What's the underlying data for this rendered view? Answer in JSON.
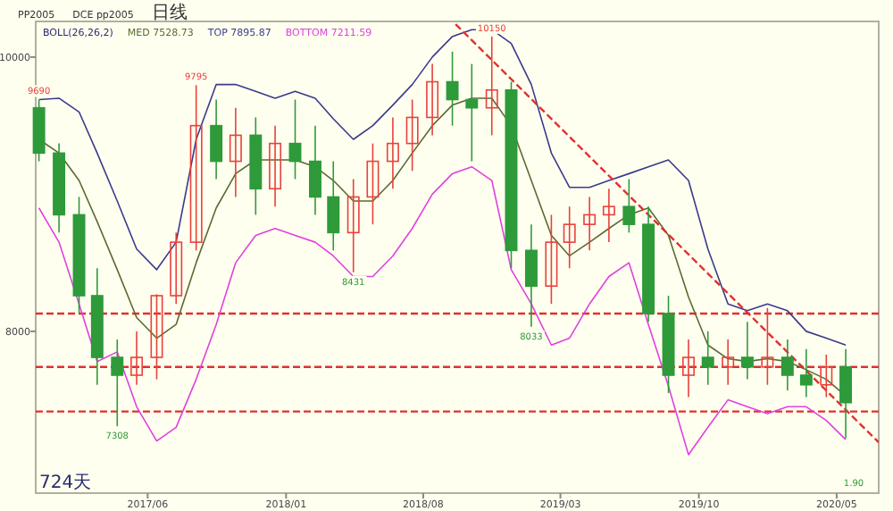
{
  "chart_data": {
    "type": "candlestick",
    "legend_title": "BOLL(26,26,2)",
    "legend": "top left",
    "x": [
      "2016-12-15",
      "2017-01-15",
      "2017-02-15",
      "2017-03-15",
      "2017-04-15",
      "2017-05-15",
      "2017-06-15",
      "2017-07-15",
      "2017-08-15",
      "2017-09-15",
      "2017-10-15",
      "2017-11-15",
      "2017-12-15",
      "2018-01-15",
      "2018-02-15",
      "2018-03-15",
      "2018-04-15",
      "2018-05-15",
      "2018-06-15",
      "2018-07-15",
      "2018-08-15",
      "2018-09-15",
      "2018-10-15",
      "2018-11-15",
      "2018-12-15",
      "2019-01-15",
      "2019-02-15",
      "2019-03-15",
      "2019-04-15",
      "2019-05-15",
      "2019-06-15",
      "2019-07-15",
      "2019-08-15",
      "2019-09-15",
      "2019-10-15",
      "2019-11-15",
      "2019-12-15",
      "2020-01-15",
      "2020-02-15",
      "2020-03-15",
      "2020-04-15",
      "2020-05-15"
    ],
    "ohlc": [
      [
        9630,
        9690,
        9240,
        9300
      ],
      [
        9300,
        9370,
        8720,
        8850
      ],
      [
        8850,
        8980,
        8130,
        8260
      ],
      [
        8260,
        8460,
        7610,
        7810
      ],
      [
        7810,
        7940,
        7308,
        7680
      ],
      [
        7680,
        8000,
        7610,
        7810
      ],
      [
        7810,
        8270,
        7650,
        8260
      ],
      [
        8260,
        8720,
        8200,
        8650
      ],
      [
        8650,
        9795,
        8590,
        9500
      ],
      [
        9500,
        9690,
        9110,
        9240
      ],
      [
        9240,
        9630,
        8980,
        9430
      ],
      [
        9430,
        9560,
        8850,
        9040
      ],
      [
        9040,
        9500,
        8910,
        9370
      ],
      [
        9370,
        9690,
        9110,
        9240
      ],
      [
        9240,
        9500,
        8850,
        8980
      ],
      [
        8980,
        9240,
        8590,
        8720
      ],
      [
        8720,
        9110,
        8431,
        8980
      ],
      [
        8980,
        9370,
        8780,
        9240
      ],
      [
        9240,
        9560,
        9040,
        9370
      ],
      [
        9370,
        9690,
        9170,
        9560
      ],
      [
        9560,
        9950,
        9430,
        9820
      ],
      [
        9820,
        10040,
        9500,
        9690
      ],
      [
        9690,
        9950,
        9240,
        9630
      ],
      [
        9630,
        10150,
        9430,
        9760
      ],
      [
        9760,
        9820,
        8460,
        8590
      ],
      [
        8590,
        8780,
        8033,
        8330
      ],
      [
        8330,
        8850,
        8200,
        8650
      ],
      [
        8650,
        8910,
        8460,
        8780
      ],
      [
        8780,
        8980,
        8590,
        8850
      ],
      [
        8850,
        9040,
        8650,
        8910
      ],
      [
        8910,
        9110,
        8720,
        8780
      ],
      [
        8780,
        8910,
        8070,
        8130
      ],
      [
        8130,
        8260,
        7550,
        7680
      ],
      [
        7680,
        7940,
        7520,
        7810
      ],
      [
        7810,
        8000,
        7610,
        7740
      ],
      [
        7740,
        7940,
        7610,
        7810
      ],
      [
        7810,
        8070,
        7650,
        7740
      ],
      [
        7740,
        8170,
        7610,
        7810
      ],
      [
        7810,
        7940,
        7570,
        7680
      ],
      [
        7680,
        7870,
        7520,
        7610
      ],
      [
        7610,
        7830,
        7520,
        7740
      ],
      [
        7740,
        7870,
        7220,
        7480
      ]
    ],
    "colors": [
      "#2e9a3a",
      "#2e9a3a",
      "#2e9a3a",
      "#2e9a3a",
      "#2e9a3a",
      "#e8413b",
      "#e8413b",
      "#e8413b",
      "#e8413b",
      "#2e9a3a",
      "#e8413b",
      "#2e9a3a",
      "#e8413b",
      "#2e9a3a",
      "#2e9a3a",
      "#2e9a3a",
      "#e8413b",
      "#e8413b",
      "#e8413b",
      "#e8413b",
      "#e8413b",
      "#2e9a3a",
      "#2e9a3a",
      "#e8413b",
      "#2e9a3a",
      "#2e9a3a",
      "#e8413b",
      "#e8413b",
      "#e8413b",
      "#e8413b",
      "#2e9a3a",
      "#2e9a3a",
      "#2e9a3a",
      "#e8413b",
      "#2e9a3a",
      "#e8413b",
      "#2e9a3a",
      "#e8413b",
      "#2e9a3a",
      "#2e9a3a",
      "#e8413b",
      "#2e9a3a"
    ],
    "series": [
      {
        "name": "MED 7528.73",
        "type": "line",
        "color": "#5a6a30",
        "values": [
          9400,
          9300,
          9100,
          8800,
          8450,
          8100,
          7950,
          8050,
          8500,
          8900,
          9150,
          9250,
          9250,
          9250,
          9200,
          9100,
          8950,
          8950,
          9100,
          9300,
          9500,
          9650,
          9700,
          9700,
          9500,
          9100,
          8700,
          8550,
          8650,
          8750,
          8850,
          8900,
          8700,
          8250,
          7900,
          7800,
          7780,
          7800,
          7780,
          7720,
          7650,
          7530
        ]
      },
      {
        "name": "TOP 7895.87",
        "type": "line",
        "color": "#3a3a8c",
        "values": [
          9690,
          9700,
          9600,
          9300,
          8950,
          8600,
          8450,
          8650,
          9400,
          9800,
          9800,
          9750,
          9700,
          9750,
          9700,
          9550,
          9400,
          9500,
          9650,
          9800,
          10000,
          10150,
          10200,
          10200,
          10100,
          9800,
          9300,
          9050,
          9050,
          9100,
          9150,
          9200,
          9250,
          9100,
          8600,
          8200,
          8150,
          8200,
          8150,
          8000,
          7950,
          7900
        ]
      },
      {
        "name": "BOTTOM 7211.59",
        "type": "line",
        "color": "#e040e0",
        "values": [
          8900,
          8650,
          8200,
          7780,
          7850,
          7450,
          7200,
          7300,
          7650,
          8050,
          8500,
          8700,
          8750,
          8700,
          8650,
          8550,
          8400,
          8400,
          8550,
          8750,
          9000,
          9150,
          9200,
          9100,
          8450,
          8200,
          7900,
          7950,
          8200,
          8400,
          8500,
          8050,
          7600,
          7100,
          7300,
          7500,
          7450,
          7400,
          7450,
          7450,
          7350,
          7210
        ]
      },
      {
        "type": "line",
        "color": "#e03030",
        "line_style": "dashed",
        "x": [
          "2018-09-20",
          "2020-07-05"
        ],
        "values": [
          10240,
          7190
        ]
      }
    ],
    "ref_lines": [
      {
        "axis": "y",
        "value": 8130,
        "color": "#e03030",
        "line_style": "dashed"
      },
      {
        "axis": "y",
        "value": 7740,
        "color": "#e03030",
        "line_style": "dashed"
      },
      {
        "axis": "y",
        "value": 7415,
        "color": "#e03030",
        "line_style": "dashed"
      }
    ],
    "xlim": [
      "2016-12-10",
      "2020-07-05"
    ],
    "ylim": [
      6820,
      10260
    ],
    "yticks": [
      8000,
      10000
    ],
    "xticks": [
      {
        "value": "2017-06-01",
        "label": "2017/06"
      },
      {
        "value": "2018-01-01",
        "label": "2018/01"
      },
      {
        "value": "2018-08-01",
        "label": "2018/08"
      },
      {
        "value": "2019-03-01",
        "label": "2019/03"
      },
      {
        "value": "2019-10-01",
        "label": "2019/10"
      },
      {
        "value": "2020-05-01",
        "label": "2020/05"
      }
    ],
    "annotations": [
      "PP2005",
      "DCE pp2005",
      "日线",
      "724天",
      "1.90",
      {
        "text": "9690",
        "x": "2016-12-15",
        "y": 9690
      },
      {
        "text": "9795",
        "x": "2017-08-15",
        "y": 9795
      },
      {
        "text": "7308",
        "x": "2017-04-15",
        "y": 7308
      },
      {
        "text": "8431",
        "x": "2018-04-15",
        "y": 8431
      },
      {
        "text": "10150",
        "x": "2018-11-15",
        "y": 10150
      },
      {
        "text": "8033",
        "x": "2019-01-15",
        "y": 8033
      }
    ]
  }
}
